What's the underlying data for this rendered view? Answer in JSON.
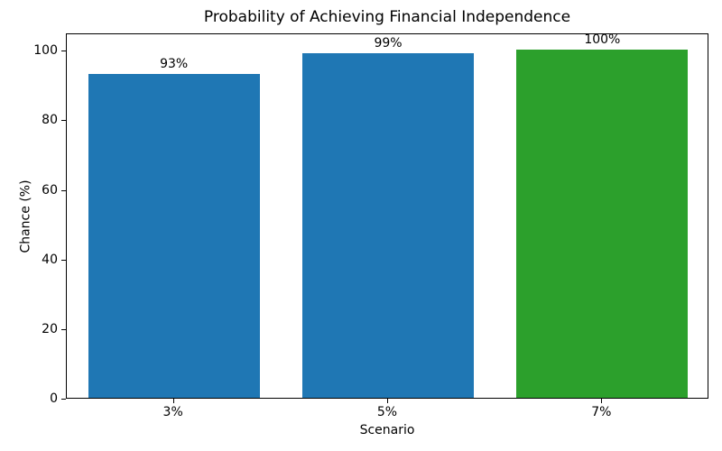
{
  "chart_data": {
    "type": "bar",
    "title": "Probability of Achieving Financial Independence",
    "xlabel": "Scenario",
    "ylabel": "Chance (%)",
    "categories": [
      "3%",
      "5%",
      "7%"
    ],
    "values": [
      93,
      99,
      100
    ],
    "bar_labels": [
      "93%",
      "99%",
      "100%"
    ],
    "bar_colors": [
      "#1f77b4",
      "#1f77b4",
      "#2ca02c"
    ],
    "yticks": [
      0,
      20,
      40,
      60,
      80,
      100
    ],
    "ylim": [
      0,
      105
    ],
    "grid": false,
    "legend": null,
    "background_color": "#ffffff",
    "spine_color": "#000000"
  }
}
